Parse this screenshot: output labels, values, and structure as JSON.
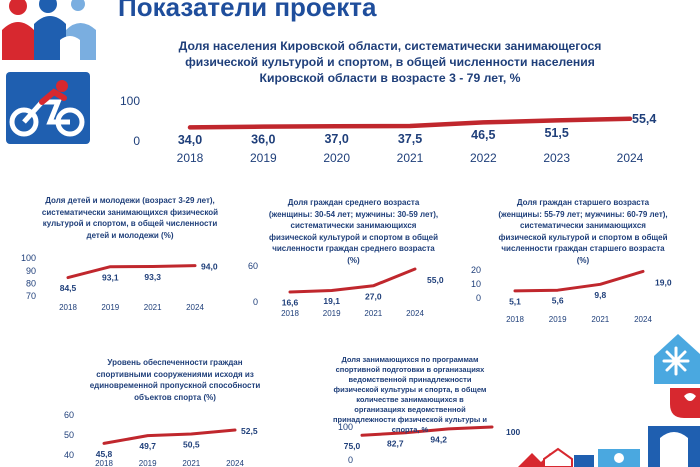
{
  "page_title": "Показатели проекта",
  "colors": {
    "line": "#c0272d",
    "text": "#1f3f7a",
    "title": "#1f4e9c",
    "accent_blue": "#1f5fb0",
    "accent_red": "#d7282f"
  },
  "icons": [
    "family-logo-icon",
    "cyclist-icon",
    "snowflake-house-icon",
    "corner-decoration-icon"
  ],
  "chart_data": [
    {
      "id": "main",
      "type": "line",
      "title": "Доля населения Кировской области, систематически занимающегося физической культурой и спортом, в общей численности населения Кировской области в возрасте 3 - 79 лет, %",
      "categories": [
        "2018",
        "2019",
        "2020",
        "2021",
        "2022",
        "2023",
        "2024"
      ],
      "values": [
        34.0,
        36.0,
        37.0,
        37.5,
        46.5,
        51.5,
        55.4
      ],
      "labels": [
        "34,0",
        "36,0",
        "37,0",
        "37,5",
        "46,5",
        "51,5",
        "55,4"
      ],
      "yticks": [
        "0",
        "100"
      ],
      "ylim": [
        0,
        100
      ],
      "grid": false
    },
    {
      "id": "youth",
      "type": "line",
      "title": "Доля детей и молодежи (возраст 3-29 лет), систематически занимающихся физической культурой и спортом, в общей численности детей и молодежи (%)",
      "categories": [
        "2018",
        "2019",
        "2021",
        "2024"
      ],
      "values": [
        84.5,
        93.1,
        93.3,
        94.0
      ],
      "labels": [
        "84,5",
        "93,1",
        "93,3",
        "94,0"
      ],
      "yticks": [
        "70",
        "80",
        "90",
        "100"
      ],
      "ylim": [
        70,
        100
      ],
      "grid": false
    },
    {
      "id": "middle",
      "type": "line",
      "title": "Доля граждан среднего возраста (женщины: 30-54 лет; мужчины: 30-59 лет), систематически занимающихся физической культурой и спортом в общей численности граждан среднего возраста (%)",
      "categories": [
        "2018",
        "2019",
        "2021",
        "2024"
      ],
      "values": [
        16.6,
        19.1,
        27.0,
        55.0
      ],
      "labels": [
        "16,6",
        "19,1",
        "27,0",
        "55,0"
      ],
      "yticks": [
        "0",
        "60"
      ],
      "ylim": [
        0,
        60
      ],
      "grid": false
    },
    {
      "id": "senior",
      "type": "line",
      "title": "Доля граждан старшего возраста (женщины: 55-79 лет; мужчины: 60-79 лет), систематически занимающихся физической культурой и спортом в общей численности граждан старшего возраста (%)",
      "categories": [
        "2018",
        "2019",
        "2021",
        "2024"
      ],
      "values": [
        5.1,
        5.6,
        9.8,
        19.0
      ],
      "labels": [
        "5,1",
        "5,6",
        "9,8",
        "19,0"
      ],
      "yticks": [
        "0",
        "10",
        "20"
      ],
      "ylim": [
        0,
        20
      ],
      "grid": false
    },
    {
      "id": "facilities",
      "type": "line",
      "title": "Уровень обеспеченности граждан спортивными сооружениями исходя из единовременной пропускной способности объектов спорта (%)",
      "categories": [
        "2018",
        "2019",
        "2021",
        "2024"
      ],
      "values": [
        45.8,
        49.7,
        50.5,
        52.5
      ],
      "labels": [
        "45,8",
        "49,7",
        "50,5",
        "52,5"
      ],
      "yticks": [
        "40",
        "50",
        "60"
      ],
      "ylim": [
        40,
        60
      ],
      "grid": false
    },
    {
      "id": "sport-training",
      "type": "line",
      "title": "Доля занимающихся по программам спортивной подготовки в организациях ведомственной принадлежности физической культуры и спорта, в общем количестве занимающихся в организациях ведомственной принадлежности физической культуры и спорта, %",
      "categories": [],
      "values": [
        75.0,
        82.7,
        94.2,
        100
      ],
      "labels": [
        "75,0",
        "82,7",
        "94,2",
        "100"
      ],
      "yticks": [
        "0",
        "100"
      ],
      "ylim": [
        0,
        100
      ],
      "grid": false
    }
  ]
}
